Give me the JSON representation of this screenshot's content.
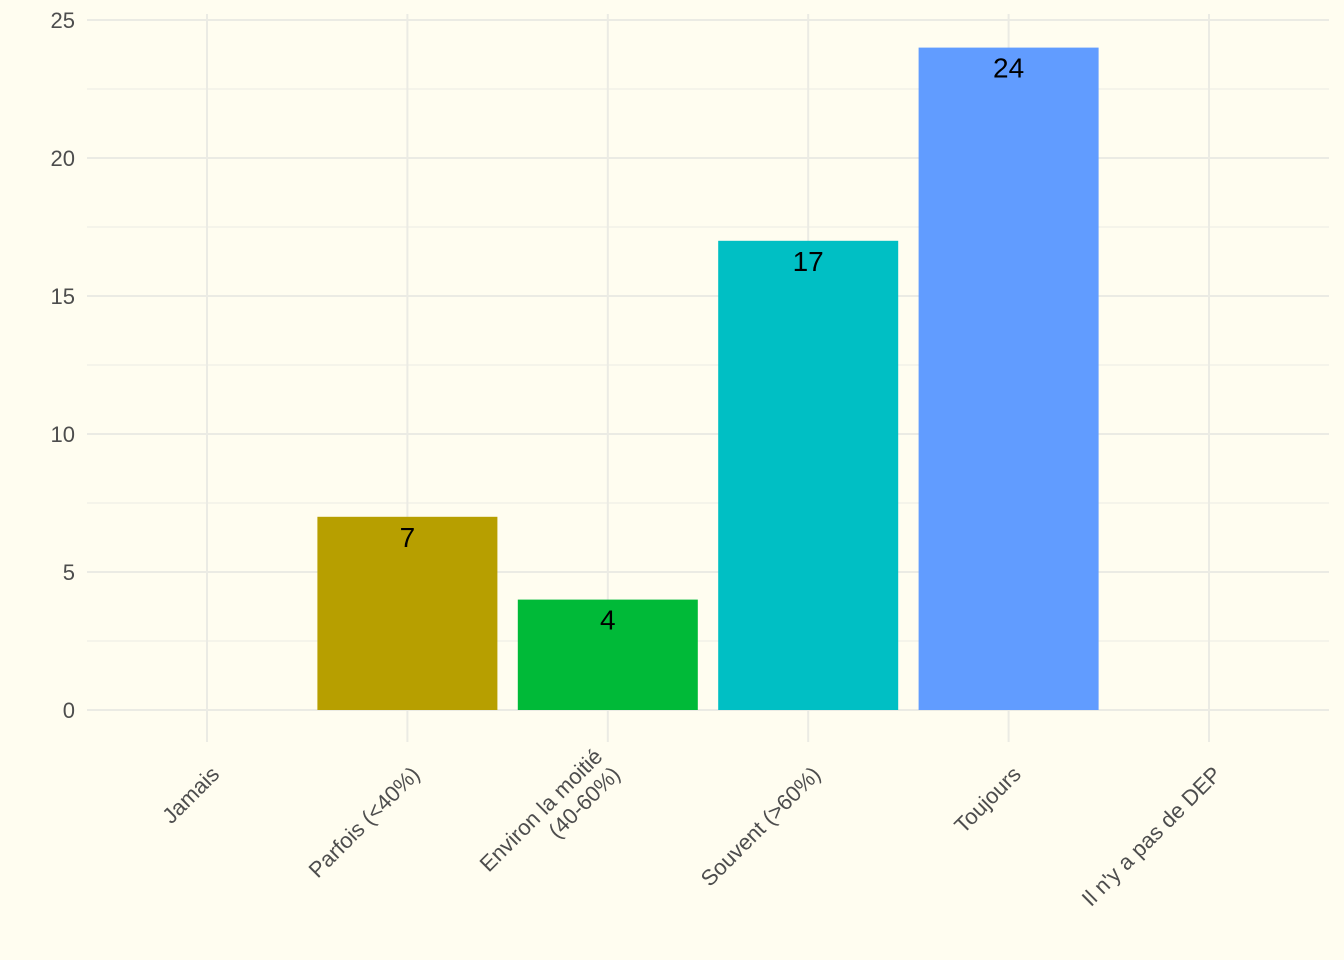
{
  "chart_data": {
    "type": "bar",
    "categories": [
      [
        "Jamais"
      ],
      [
        "Parfois (<40%)"
      ],
      [
        "Environ la moitié",
        "(40-60%)"
      ],
      [
        "Souvent (>60%)"
      ],
      [
        "Toujours"
      ],
      [
        "Il n'y a pas de DEP"
      ]
    ],
    "values": [
      0,
      7,
      4,
      17,
      24,
      0
    ],
    "colors": [
      "#F8766D",
      "#B79F00",
      "#00BA38",
      "#00BFC4",
      "#619CFF",
      "#F564E3"
    ],
    "ylim": [
      0,
      25
    ],
    "yticks": [
      0,
      5,
      10,
      15,
      20,
      25
    ],
    "title": "",
    "xlabel": "",
    "ylabel": "",
    "grid": true,
    "legend": "none",
    "background": "#fffdf0",
    "grid_color": "#ebebe4"
  }
}
